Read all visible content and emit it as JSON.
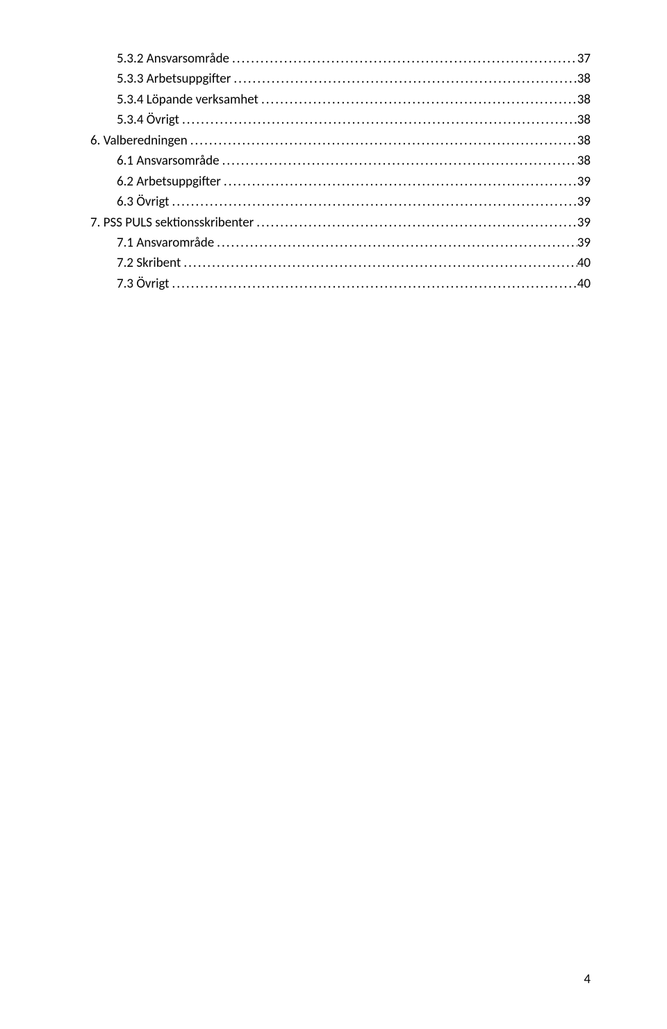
{
  "toc": [
    {
      "indent": 1,
      "label": "5.3.2 Ansvarsområde",
      "page": "37"
    },
    {
      "indent": 1,
      "label": "5.3.3 Arbetsuppgifter",
      "page": "38"
    },
    {
      "indent": 1,
      "label": "5.3.4 Löpande verksamhet",
      "page": "38"
    },
    {
      "indent": 1,
      "label": "5.3.4 Övrigt",
      "page": "38"
    },
    {
      "indent": 0,
      "label": "6. Valberedningen",
      "page": "38"
    },
    {
      "indent": 1,
      "label": "6.1 Ansvarsområde",
      "page": "38"
    },
    {
      "indent": 1,
      "label": "6.2 Arbetsuppgifter",
      "page": "39"
    },
    {
      "indent": 1,
      "label": "6.3 Övrigt",
      "page": "39"
    },
    {
      "indent": 0,
      "label": "7. PSS PULS sektionsskribenter",
      "page": "39"
    },
    {
      "indent": 1,
      "label": "7.1 Ansvarområde",
      "page": "39"
    },
    {
      "indent": 1,
      "label": "7.2 Skribent",
      "page": "40"
    },
    {
      "indent": 1,
      "label": "7.3  Övrigt",
      "page": "40"
    }
  ],
  "page_number": "4"
}
